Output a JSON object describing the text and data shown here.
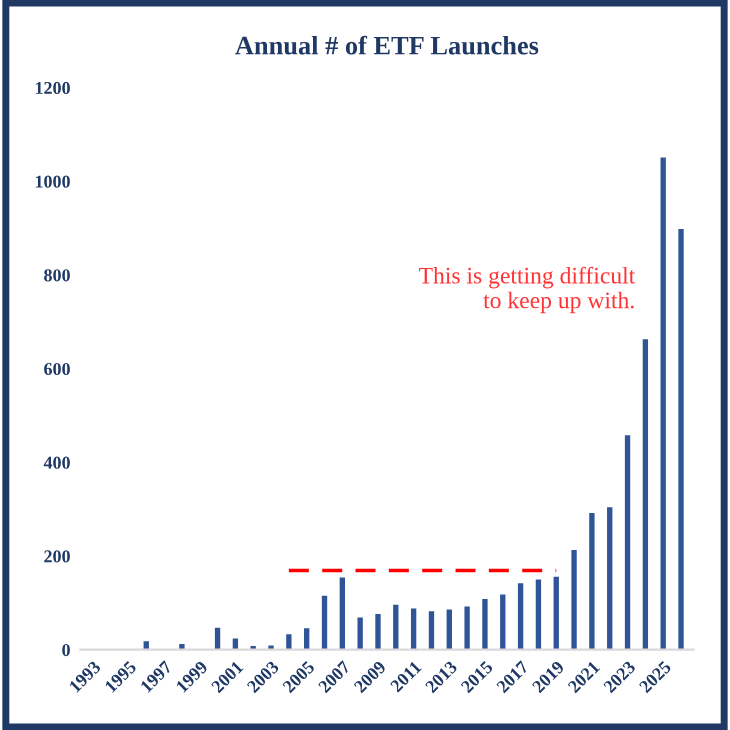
{
  "chart_data": {
    "type": "bar",
    "title": "Annual # of ETF Launches",
    "categories": [
      "1993",
      null,
      "1995",
      null,
      "1997",
      null,
      "1999",
      null,
      "2001",
      null,
      "2003",
      null,
      "2005",
      null,
      "2007",
      null,
      "2009",
      null,
      "2011",
      null,
      "2013",
      null,
      "2015",
      null,
      "2017",
      null,
      "2019",
      null,
      "2021",
      null,
      "2023",
      null,
      "2025",
      null
    ],
    "series": [
      {
        "color": "#2f5597",
        "values": [
          1,
          0,
          0,
          18,
          0,
          12,
          0,
          47,
          24,
          8,
          9,
          33,
          46,
          115,
          154,
          69,
          76,
          96,
          88,
          82,
          86,
          92,
          108,
          118,
          142,
          150,
          156,
          213,
          292,
          304,
          458,
          663,
          1051,
          898
        ]
      },
      {
        "type": "line",
        "color": "#ff0000",
        "line_style": "dashed",
        "values": [
          null,
          null,
          null,
          null,
          null,
          null,
          null,
          null,
          null,
          null,
          null,
          169,
          169,
          169,
          169,
          169,
          169,
          169,
          169,
          169,
          169,
          169,
          169,
          169,
          169,
          169,
          169,
          null,
          null,
          null,
          null,
          null,
          null,
          null
        ]
      }
    ],
    "annotations": [
      "This is getting difficult\nto keep up with."
    ],
    "ylim": [
      0,
      1200
    ],
    "yticks": [
      0,
      200,
      400,
      600,
      800,
      1000,
      1200
    ],
    "grid": false,
    "legend": false
  }
}
